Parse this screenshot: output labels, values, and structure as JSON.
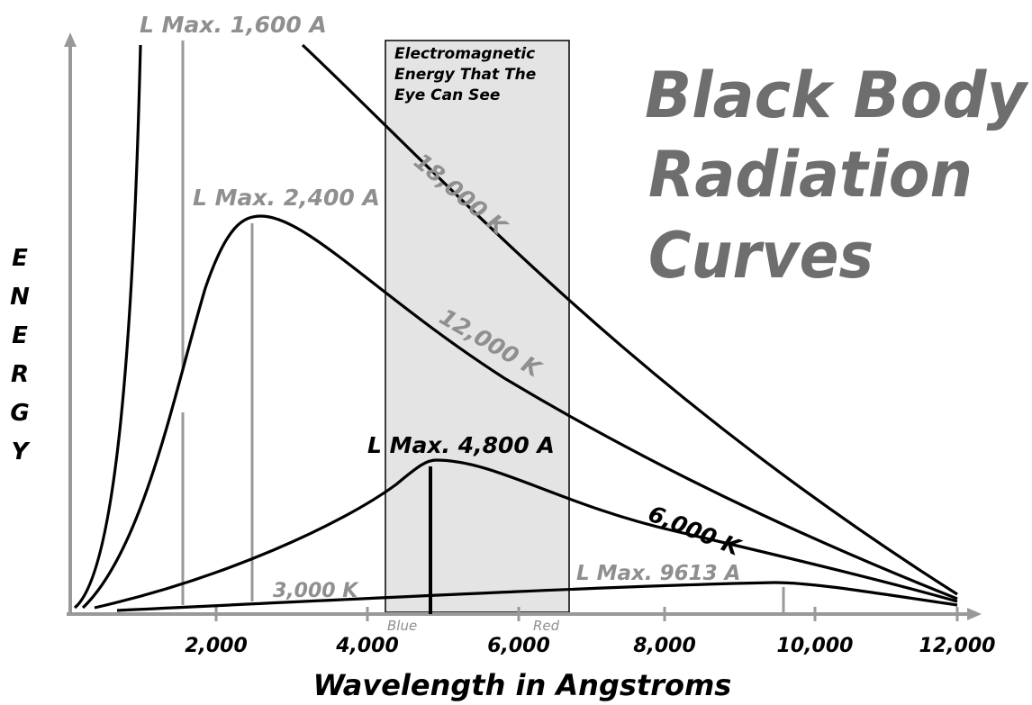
{
  "title": [
    "Black Body",
    "Radiation",
    "Curves"
  ],
  "band_label": [
    "Electromagnetic",
    "Energy That The",
    "Eye Can See"
  ],
  "band_edges": [
    "Blue",
    "Red"
  ],
  "y_axis_letters": [
    "E",
    "N",
    "E",
    "R",
    "G",
    "Y"
  ],
  "x_axis_label": "Wavelength in Angstroms",
  "x_ticks": [
    "2,000",
    "4,000",
    "6,000",
    "8,000",
    "10,000",
    "12,000"
  ],
  "curves": [
    "18,000 K",
    "12,000 K",
    "6,000 K",
    "3,000 K"
  ],
  "peaks": [
    "L Max. 1,600 A",
    "L Max. 2,400 A",
    "L Max. 4,800 A",
    "L Max. 9613 A"
  ]
}
